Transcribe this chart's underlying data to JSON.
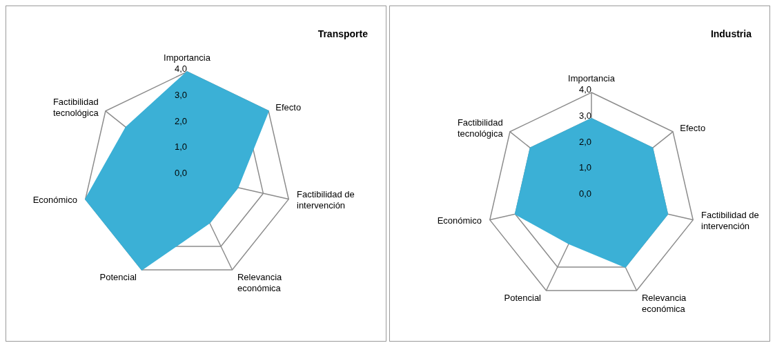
{
  "chart_data": [
    {
      "type": "radar",
      "title": "Transporte",
      "categories": [
        "Importancia",
        "Efecto",
        "Factibilidad de intervención",
        "Relevancia económica",
        "Potencial",
        "Económico",
        "Factibilidad tecnológica"
      ],
      "series": [
        {
          "color": "#3bb0d6",
          "values": [
            4,
            4,
            2,
            2,
            4,
            4,
            3
          ]
        }
      ],
      "ylim": [
        0,
        4
      ],
      "yticks": [
        {
          "value": 0,
          "label": "0,0"
        },
        {
          "value": 1,
          "label": "1,0"
        },
        {
          "value": 2,
          "label": "2,0"
        },
        {
          "value": 3,
          "label": "3,0"
        },
        {
          "value": 4,
          "label": "4,0"
        }
      ],
      "grid": true,
      "legend": false
    },
    {
      "type": "radar",
      "title": "Industria",
      "categories": [
        "Importancia",
        "Efecto",
        "Factibilidad de intervención",
        "Relevancia económica",
        "Potencial",
        "Económico",
        "Factibilidad tecnológica"
      ],
      "series": [
        {
          "color": "#3bb0d6",
          "values": [
            3,
            3,
            3,
            3,
            2,
            3,
            3
          ]
        }
      ],
      "ylim": [
        0,
        4
      ],
      "yticks": [
        {
          "value": 0,
          "label": "0,0"
        },
        {
          "value": 1,
          "label": "1,0"
        },
        {
          "value": 2,
          "label": "2,0"
        },
        {
          "value": 3,
          "label": "3,0"
        },
        {
          "value": 4,
          "label": "4,0"
        }
      ],
      "grid": true,
      "legend": false
    }
  ]
}
